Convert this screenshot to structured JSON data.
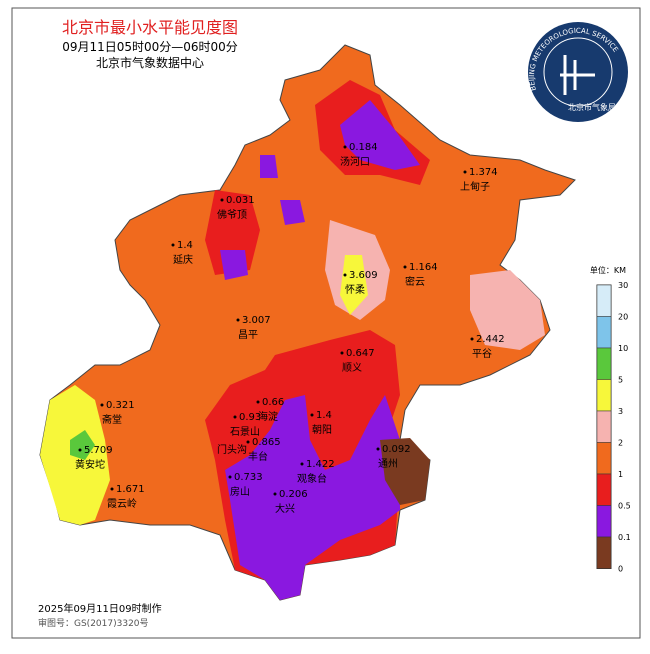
{
  "header": {
    "title": "北京市最小水平能见度图",
    "subtitle": "09月11日05时00分—06时00分",
    "issuer": "北京市气象数据中心"
  },
  "logo": {
    "ring_text": "BEIJING METEOROLOGICAL SERVICE",
    "name": "北京市气象局"
  },
  "stations": [
    {
      "name": "汤河口",
      "value": 0.184
    },
    {
      "name": "上甸子",
      "value": 1.374
    },
    {
      "name": "佛爷顶",
      "value": 0.031
    },
    {
      "name": "延庆",
      "value": 1.4
    },
    {
      "name": "怀柔",
      "value": 3.609
    },
    {
      "name": "密云",
      "value": 1.164
    },
    {
      "name": "昌平",
      "value": 3.007
    },
    {
      "name": "平谷",
      "value": 2.442
    },
    {
      "name": "顺义",
      "value": 0.647
    },
    {
      "name": "斋堂",
      "value": 0.321
    },
    {
      "name": "海淀",
      "value": 0.66
    },
    {
      "name": "朝阳",
      "value": 1.4
    },
    {
      "name": "石景山",
      "value": 0.93
    },
    {
      "name": "丰台",
      "value": 0.865
    },
    {
      "name": "黄安坨",
      "value": 5.709
    },
    {
      "name": "通州",
      "value": 0.092
    },
    {
      "name": "观象台",
      "value": 1.422
    },
    {
      "name": "房山",
      "value": 0.733
    },
    {
      "name": "大兴",
      "value": 0.206
    },
    {
      "name": "霞云岭",
      "value": 1.671
    },
    {
      "name": "门头沟"
    }
  ],
  "legend": {
    "unit": "单位：KM",
    "levels": [
      {
        "label": "30",
        "color": "#ffffff"
      },
      {
        "label": "20",
        "color": "#d6ecf8"
      },
      {
        "label": "10",
        "color": "#7ec4ea"
      },
      {
        "label": "5",
        "color": "#5ac83c"
      },
      {
        "label": "3",
        "color": "#f7f73a"
      },
      {
        "label": "2",
        "color": "#f6b3b0"
      },
      {
        "label": "1",
        "color": "#f06a1e"
      },
      {
        "label": "0.5",
        "color": "#e81e1e"
      },
      {
        "label": "0.1",
        "color": "#8a18e0"
      },
      {
        "label": "0",
        "color": "#7a3a20"
      }
    ]
  },
  "footer": {
    "made": "2025年09月11日09时制作",
    "approval": "审图号：GS(2017)3320号"
  }
}
